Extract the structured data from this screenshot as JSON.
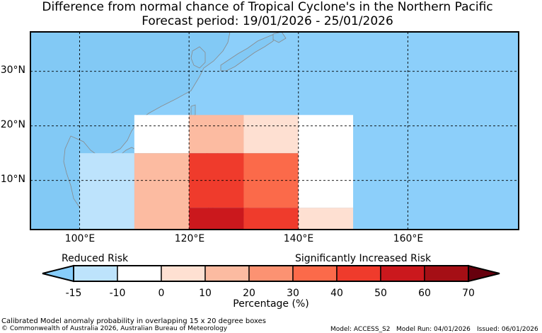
{
  "title": {
    "line1": "Difference from normal chance of Tropical Cyclone's in the Northern Pacific",
    "line2": "Forecast period: 19/01/2026 - 25/01/2026"
  },
  "map": {
    "lat_labels": [
      "30°N",
      "20°N",
      "10°N"
    ],
    "lon_labels": [
      "100°E",
      "120°E",
      "140°E",
      "160°E"
    ],
    "grid_cells": [
      {
        "lon_range": [
          100,
          110
        ],
        "lat_range": [
          0,
          15
        ],
        "category": "-15 to -10"
      },
      {
        "lon_range": [
          110,
          120
        ],
        "lat_range": [
          15,
          22
        ],
        "category": "-10 to 0"
      },
      {
        "lon_range": [
          110,
          120
        ],
        "lat_range": [
          0,
          15
        ],
        "category": "10 to 20"
      },
      {
        "lon_range": [
          120,
          130
        ],
        "lat_range": [
          15,
          22
        ],
        "category": "10 to 20"
      },
      {
        "lon_range": [
          120,
          130
        ],
        "lat_range": [
          5,
          15
        ],
        "category": "40 to 50"
      },
      {
        "lon_range": [
          120,
          130
        ],
        "lat_range": [
          0,
          5
        ],
        "category": "50 to 60"
      },
      {
        "lon_range": [
          130,
          140
        ],
        "lat_range": [
          15,
          22
        ],
        "category": "0 to 10"
      },
      {
        "lon_range": [
          130,
          140
        ],
        "lat_range": [
          5,
          15
        ],
        "category": "30 to 40"
      },
      {
        "lon_range": [
          130,
          140
        ],
        "lat_range": [
          0,
          5
        ],
        "category": "40 to 50"
      },
      {
        "lon_range": [
          140,
          150
        ],
        "lat_range": [
          5,
          22
        ],
        "category": "-10 to 0"
      },
      {
        "lon_range": [
          140,
          150
        ],
        "lat_range": [
          0,
          5
        ],
        "category": "0 to 10"
      }
    ]
  },
  "colorbar": {
    "left_label": "Reduced Risk",
    "right_label": "Significantly Increased Risk",
    "title": "Percentage (%)",
    "ticks": [
      "-15",
      "-10",
      "0",
      "10",
      "20",
      "30",
      "40",
      "50",
      "60",
      "70"
    ],
    "under_color": "#87cdfa",
    "over_color": "#67000d",
    "colors": [
      "#bde3fc",
      "#ffffff",
      "#fee0d2",
      "#fcbba1",
      "#fc9272",
      "#fb6a4a",
      "#ef3b2c",
      "#cb181d",
      "#a50f15"
    ]
  },
  "colors": {
    "ocean": "#8ccffa",
    "land": "#82c9f5",
    "border": "#8a8a8a"
  },
  "footer": {
    "description": "Calibrated Model anomaly probability in overlapping 15 x 20 degree boxes",
    "copyright": "© Commonwealth of Australia 2026, Australian Bureau of Meteorology",
    "model": "Model: ACCESS_S2",
    "model_run": "Model Run: 04/01/2026",
    "issued": "Issued: 06/01/2026"
  }
}
